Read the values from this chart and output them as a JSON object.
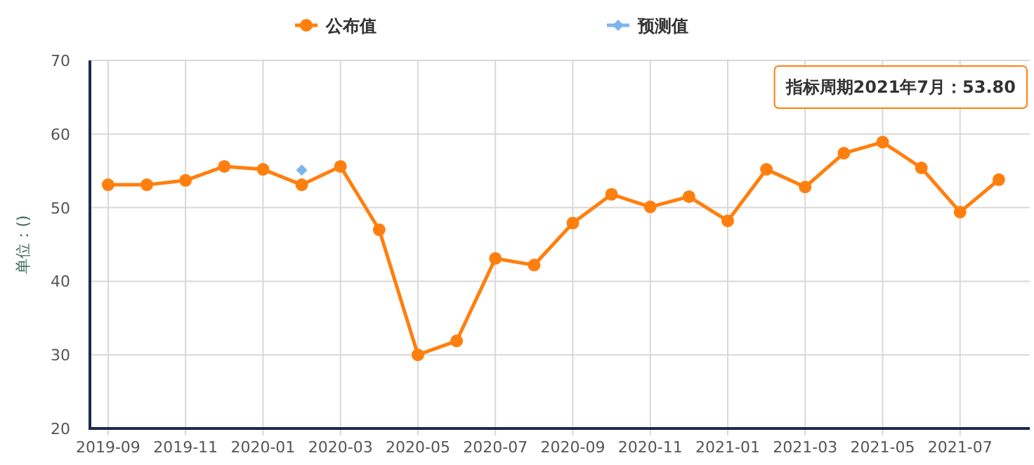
{
  "chart_data": {
    "type": "line",
    "categories": [
      "2019-09",
      null,
      "2019-11",
      null,
      "2020-01",
      null,
      "2020-03",
      null,
      "2020-05",
      null,
      "2020-07",
      null,
      "2020-09",
      null,
      "2020-11",
      null,
      "2021-01",
      null,
      "2021-03",
      null,
      "2021-05",
      null,
      "2021-07",
      null
    ],
    "series": [
      {
        "name": "公布值",
        "color": "#ff7f0e",
        "marker": "circle",
        "values": [
          53.1,
          53.1,
          53.7,
          55.6,
          55.2,
          53.1,
          55.6,
          47.0,
          30.0,
          31.9,
          43.1,
          42.2,
          47.9,
          51.8,
          50.1,
          51.5,
          48.2,
          55.2,
          52.8,
          57.4,
          58.9,
          55.4,
          49.4,
          53.8
        ]
      },
      {
        "name": "预测值",
        "color": "#7cb5ec",
        "marker": "diamond",
        "values": [
          null,
          null,
          null,
          null,
          null,
          55.1,
          null,
          null,
          null,
          null,
          null,
          null,
          null,
          null,
          null,
          null,
          null,
          null,
          null,
          null,
          null,
          null,
          null,
          null
        ]
      }
    ],
    "ylabel": "单位：()",
    "ylim": [
      20,
      70
    ],
    "yticks": [
      20,
      30,
      40,
      50,
      60,
      70
    ],
    "grid": true,
    "legend": "top",
    "annotations": [
      "指标周期2021年7月：53.80"
    ]
  }
}
